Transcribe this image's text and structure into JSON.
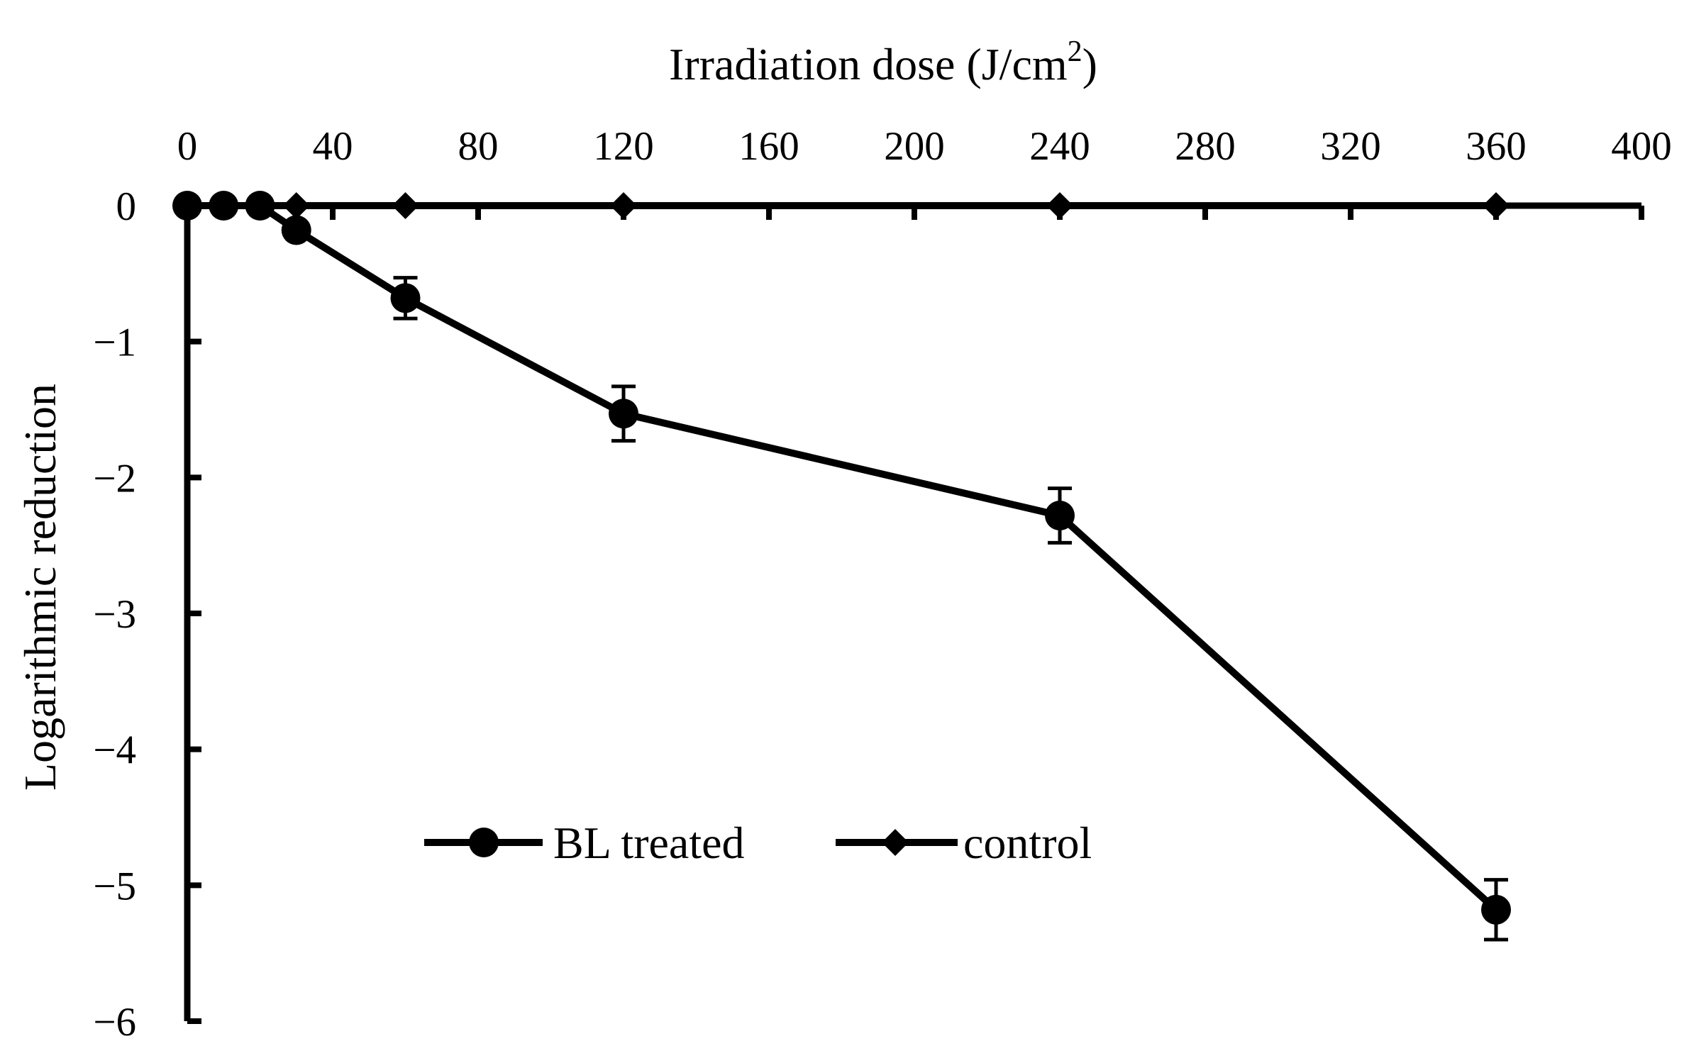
{
  "chart_data": {
    "type": "line",
    "xlabel": "Irradiation dose (J/cm",
    "xlabel_sup": "2",
    "xlabel_end": ")",
    "ylabel": "Logarithmic reduction",
    "xlim": [
      0,
      400
    ],
    "ylim": [
      -6,
      0
    ],
    "x_axis_position": "top",
    "grid": false,
    "legend_position": "bottom-center",
    "x_ticks": [
      "0",
      "40",
      "80",
      "120",
      "160",
      "200",
      "240",
      "280",
      "320",
      "360",
      "400"
    ],
    "x_tick_values": [
      0,
      40,
      80,
      120,
      160,
      200,
      240,
      280,
      320,
      360,
      400
    ],
    "y_ticks": [
      "0",
      "−1",
      "−2",
      "−3",
      "−4",
      "−5",
      "−6"
    ],
    "y_tick_values": [
      0,
      -1,
      -2,
      -3,
      -4,
      -5,
      -6
    ],
    "series": [
      {
        "name": "BL treated",
        "marker": "circle",
        "color": "#000000",
        "x": [
          0,
          10,
          20,
          30,
          60,
          120,
          240,
          360
        ],
        "y": [
          0,
          0,
          0,
          -0.18,
          -0.68,
          -1.53,
          -2.28,
          -5.18
        ],
        "error": [
          0,
          0,
          0,
          0.05,
          0.15,
          0.2,
          0.2,
          0.22
        ]
      },
      {
        "name": "control",
        "marker": "diamond",
        "color": "#000000",
        "x": [
          0,
          10,
          20,
          30,
          60,
          120,
          240,
          360
        ],
        "y": [
          0,
          0,
          0,
          0,
          0,
          0,
          0,
          0
        ]
      }
    ]
  }
}
